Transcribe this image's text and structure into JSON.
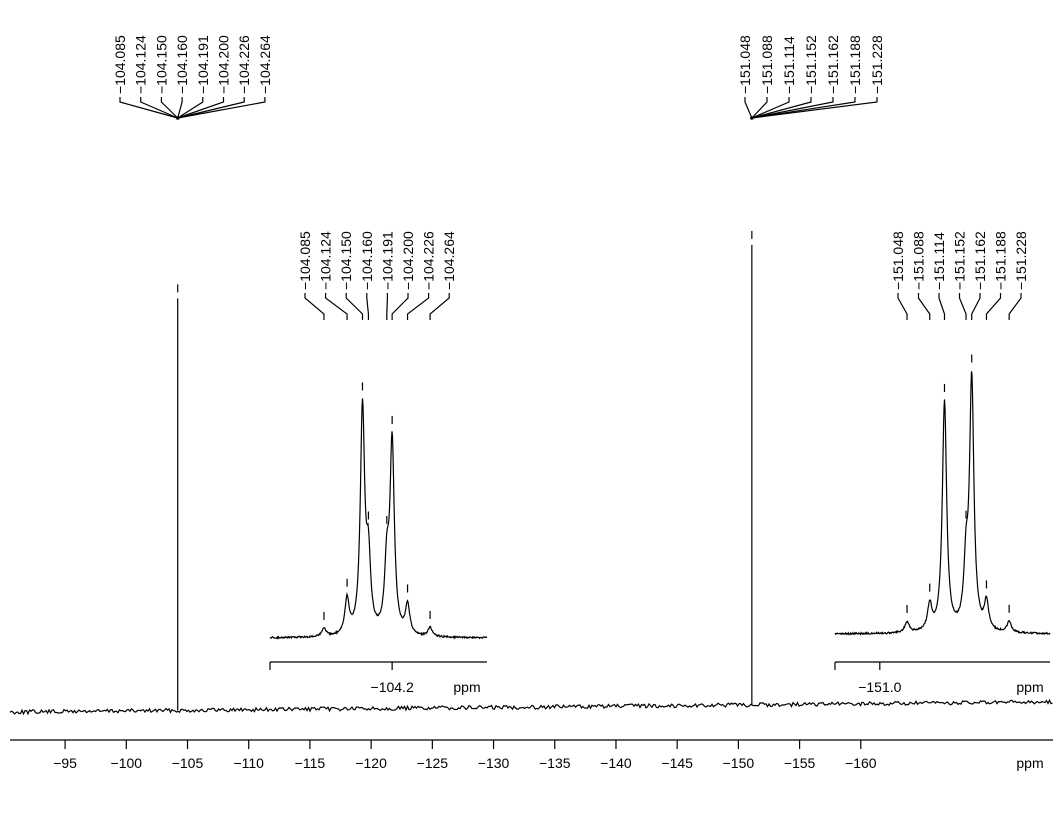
{
  "chart_data": {
    "type": "nmr",
    "x_label": "ppm",
    "xlim": [
      -90.5,
      -175.7
    ],
    "xticks": [
      {
        "value": -95,
        "label": "−95"
      },
      {
        "value": -100,
        "label": "−100"
      },
      {
        "value": -105,
        "label": "−105"
      },
      {
        "value": -110,
        "label": "−110"
      },
      {
        "value": -115,
        "label": "−115"
      },
      {
        "value": -120,
        "label": "−120"
      },
      {
        "value": -125,
        "label": "−125"
      },
      {
        "value": -130,
        "label": "−130"
      },
      {
        "value": -135,
        "label": "−135"
      },
      {
        "value": -140,
        "label": "−140"
      },
      {
        "value": -145,
        "label": "−145"
      },
      {
        "value": -150,
        "label": "−150"
      },
      {
        "value": -155,
        "label": "−155"
      },
      {
        "value": -160,
        "label": "−160"
      }
    ],
    "multiplets": [
      {
        "shift": -104.2,
        "intensity": 412,
        "peak_labels": [
          "−104.085",
          "−104.124",
          "−104.150",
          "−104.160",
          "−104.191",
          "−104.200",
          "−104.226",
          "−104.264"
        ]
      },
      {
        "shift": -151.1,
        "intensity": 460,
        "peak_labels": [
          "−151.048",
          "−151.088",
          "−151.114",
          "−151.152",
          "−151.162",
          "−151.188",
          "−151.228"
        ]
      }
    ],
    "insets": [
      {
        "x_label": "ppm",
        "xlim": [
          -103.994,
          -104.36
        ],
        "xticks": [
          {
            "value": -104.2,
            "label": "−104.2"
          }
        ],
        "peaks": [
          -104.085,
          -104.124,
          -104.15,
          -104.16,
          -104.191,
          -104.2,
          -104.226,
          -104.264
        ],
        "intensities": [
          8,
          35,
          225,
          70,
          65,
          190,
          30,
          9
        ],
        "peak_labels": [
          "−104.085",
          "−104.124",
          "−104.150",
          "−104.160",
          "−104.191",
          "−104.200",
          "−104.226",
          "−104.264"
        ]
      },
      {
        "x_label": "ppm",
        "xlim": [
          -150.921,
          -151.3
        ],
        "xticks": [
          {
            "value": -151.0,
            "label": "−151.0"
          }
        ],
        "peaks": [
          -151.048,
          -151.088,
          -151.114,
          -151.152,
          -151.162,
          -151.188,
          -151.228
        ],
        "intensities": [
          11,
          26,
          230,
          60,
          250,
          28,
          11
        ],
        "peak_labels": [
          "−151.048",
          "−151.088",
          "−151.114",
          "−151.152",
          "−151.162",
          "−151.188",
          "−151.228"
        ]
      }
    ]
  }
}
